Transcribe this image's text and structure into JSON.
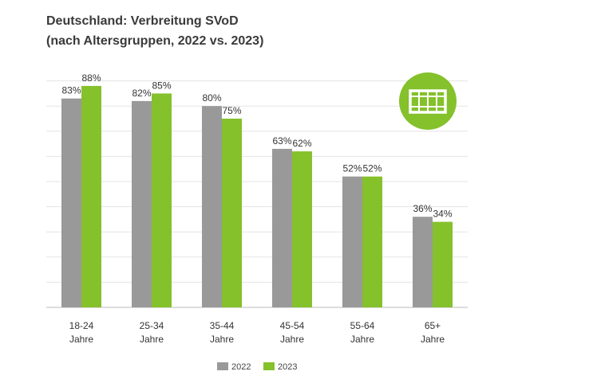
{
  "title_line1": "Deutschland: Verbreitung SVoD",
  "title_line2": "(nach Altersgruppen, 2022 vs. 2023)",
  "icon": "film-strip-icon",
  "colors": {
    "series2022": "#999999",
    "series2023": "#84c12b",
    "grid": "#e3e3e3",
    "axis": "#bbbbbb",
    "iconBg": "#84c12b"
  },
  "chart_data": {
    "type": "bar",
    "title": "Deutschland: Verbreitung SVoD (nach Altersgruppen, 2022 vs. 2023)",
    "categories": [
      {
        "line1": "18-24",
        "line2": "Jahre"
      },
      {
        "line1": "25-34",
        "line2": "Jahre"
      },
      {
        "line1": "35-44",
        "line2": "Jahre"
      },
      {
        "line1": "45-54",
        "line2": "Jahre"
      },
      {
        "line1": "55-64",
        "line2": "Jahre"
      },
      {
        "line1": "65+",
        "line2": "Jahre"
      }
    ],
    "series": [
      {
        "name": "2022",
        "values": [
          83,
          82,
          80,
          63,
          52,
          36
        ],
        "labels": [
          "83%",
          "82%",
          "80%",
          "63%",
          "52%",
          "36%"
        ]
      },
      {
        "name": "2023",
        "values": [
          88,
          85,
          75,
          62,
          52,
          34
        ],
        "labels": [
          "88%",
          "85%",
          "75%",
          "62%",
          "52%",
          "34%"
        ]
      }
    ],
    "ylim": [
      0,
      100
    ],
    "grid": true,
    "legend": "bottom-center",
    "xlabel": "",
    "ylabel": ""
  }
}
